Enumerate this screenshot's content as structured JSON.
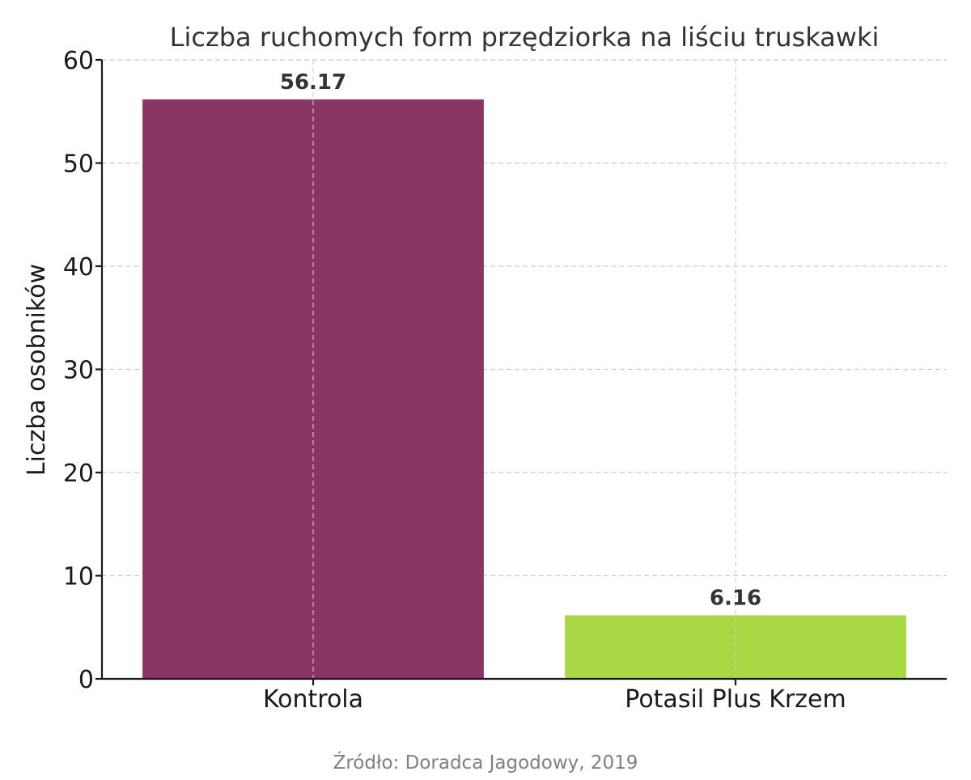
{
  "chart_data": {
    "type": "bar",
    "title": "Liczba ruchomych form przędziorka na liściu truskawki",
    "xlabel": "",
    "ylabel": "Liczba osobników",
    "categories": [
      "Kontrola",
      "Potasil Plus Krzem"
    ],
    "values": [
      56.17,
      6.16
    ],
    "value_labels": [
      "56.17",
      "6.16"
    ],
    "colors": [
      "#8b3565",
      "#a8d944"
    ],
    "ylim": [
      0,
      60
    ],
    "yticks": [
      0,
      10,
      20,
      30,
      40,
      50,
      60
    ],
    "grid": true,
    "legend": "none",
    "source": "Źródło: Doradca Jagodowy, 2019"
  }
}
